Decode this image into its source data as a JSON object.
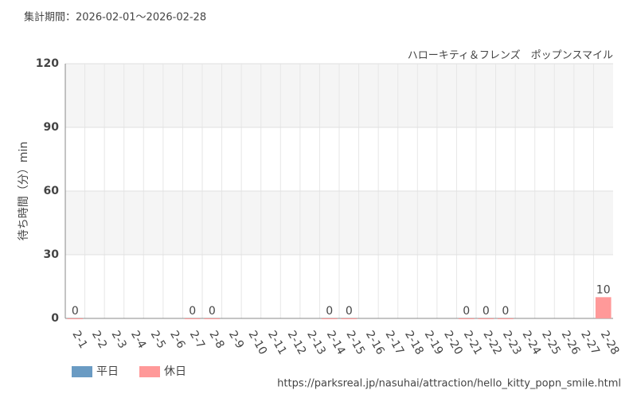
{
  "chart_data": {
    "type": "bar",
    "header": "集計期間：2026-02-01～2026-02-28",
    "title": "ハローキティ＆フレンズ　ポップンスマイル",
    "y_label": "待ち時間（分）min",
    "source": "https://parksreal.jp/nasuhai/attraction/hello_kitty_popn_smile.html",
    "categories": [
      "2-1",
      "2-2",
      "2-3",
      "2-4",
      "2-5",
      "2-6",
      "2-7",
      "2-8",
      "2-9",
      "2-10",
      "2-11",
      "2-12",
      "2-13",
      "2-14",
      "2-15",
      "2-16",
      "2-17",
      "2-18",
      "2-19",
      "2-20",
      "2-21",
      "2-22",
      "2-23",
      "2-24",
      "2-25",
      "2-26",
      "2-27",
      "2-28"
    ],
    "category_colors": [
      "#ff8c8c",
      "#444",
      "#444",
      "#444",
      "#444",
      "#444",
      "#ff8c8c",
      "#ff8c8c",
      "#444",
      "#444",
      "#ff8c8c",
      "#444",
      "#444",
      "#ff8c8c",
      "#ff8c8c",
      "#444",
      "#444",
      "#444",
      "#444",
      "#444",
      "#ff8c8c",
      "#ff8c8c",
      "#ff8c8c",
      "#444",
      "#444",
      "#444",
      "#444",
      "#ff8c8c"
    ],
    "series": [
      {
        "name": "平日",
        "color": "#6a9bc3",
        "values": [
          null,
          null,
          null,
          null,
          null,
          null,
          null,
          null,
          null,
          null,
          null,
          null,
          null,
          null,
          null,
          null,
          null,
          null,
          null,
          null,
          null,
          null,
          null,
          null,
          null,
          null,
          null,
          null
        ]
      },
      {
        "name": "休日",
        "color": "#ff9999",
        "values": [
          0,
          null,
          null,
          null,
          null,
          null,
          0,
          0,
          null,
          null,
          null,
          null,
          null,
          0,
          0,
          null,
          null,
          null,
          null,
          null,
          0,
          0,
          0,
          null,
          null,
          null,
          null,
          10
        ]
      }
    ],
    "ylim": [
      0,
      120
    ],
    "yticks": [
      0,
      30,
      60,
      90,
      120
    ],
    "grid": true,
    "legend": "bottom-left"
  }
}
